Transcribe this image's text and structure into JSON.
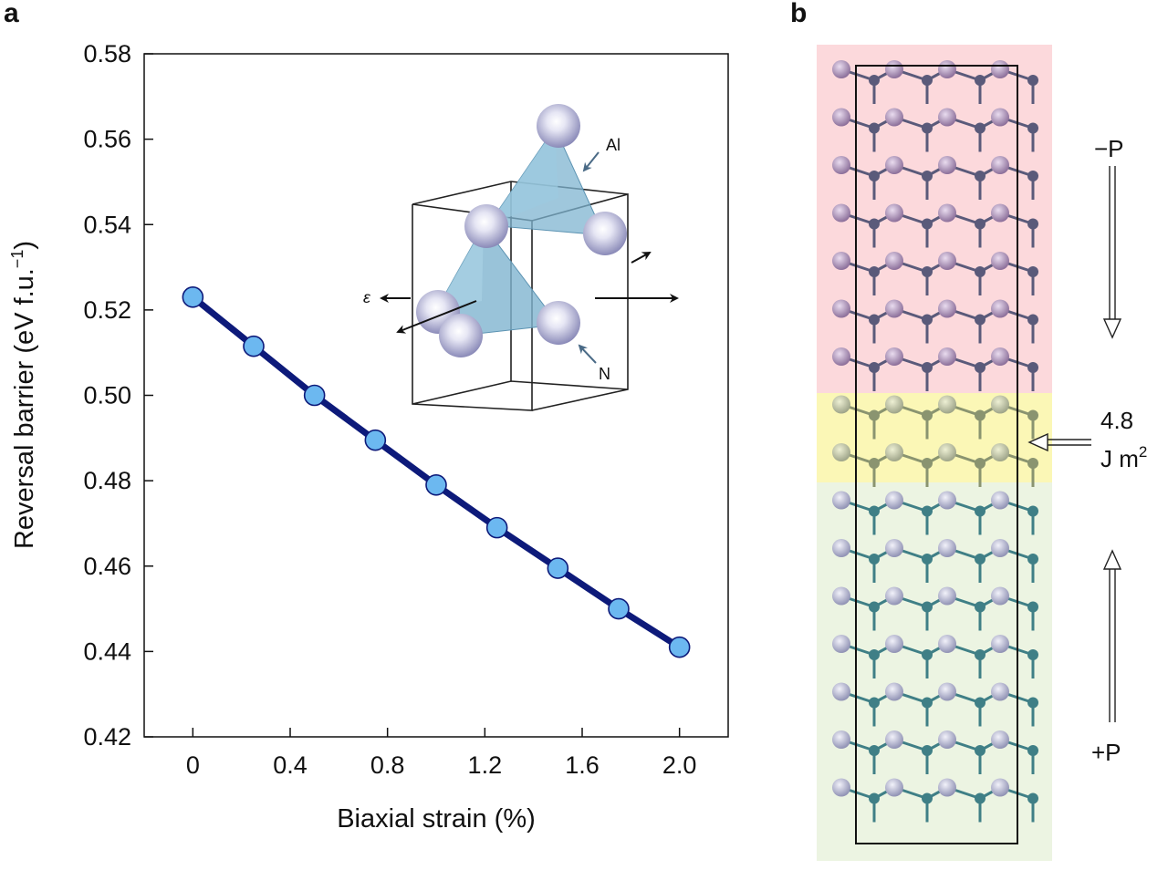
{
  "panels": {
    "a": "a",
    "b": "b"
  },
  "chart_data": {
    "type": "line",
    "xlabel": "Biaxial strain (%)",
    "ylabel": "Reversal barrier (eV f.u.",
    "ylabel_sup": "−1",
    "ylabel_close": ")",
    "xlim": [
      -0.2,
      2.2
    ],
    "ylim": [
      0.42,
      0.58
    ],
    "x_ticks": [
      0,
      0.4,
      0.8,
      1.2,
      1.6,
      2.0
    ],
    "x_tick_labels": [
      "0",
      "0.4",
      "0.8",
      "1.2",
      "1.6",
      "2.0"
    ],
    "y_ticks": [
      0.42,
      0.44,
      0.46,
      0.48,
      0.5,
      0.52,
      0.54,
      0.56,
      0.58
    ],
    "y_tick_labels": [
      "0.42",
      "0.44",
      "0.46",
      "0.48",
      "0.50",
      "0.52",
      "0.54",
      "0.56",
      "0.58"
    ],
    "grid": false,
    "series": [
      {
        "x": [
          0,
          0.25,
          0.5,
          0.75,
          1.0,
          1.25,
          1.5,
          1.75,
          2.0
        ],
        "y": [
          0.523,
          0.5115,
          0.5,
          0.4895,
          0.479,
          0.469,
          0.4595,
          0.45,
          0.441
        ],
        "line_color": "#0d1a7a",
        "marker_color": "#6cb8f0"
      }
    ]
  },
  "inset": {
    "label_al": "Al",
    "label_n": "N",
    "label_strain": "ε",
    "polyhedron_color": "#7fb4d0",
    "atom_color": "#a5a5d0"
  },
  "panel_b": {
    "minus_p": "−P",
    "plus_p": "+P",
    "energy_value": "4.8",
    "energy_unit": "J m",
    "energy_unit_sup": "2",
    "region_colors": {
      "top": "#fcd9dc",
      "middle": "#fbf7b6",
      "bottom": "#ecf4e2"
    },
    "atom_color_top": "#9a7fa6",
    "atom_color_bottom": "#a9abc6",
    "bond_color_top": "#5a5a7a",
    "bond_color_bottom": "#3f7f86"
  }
}
